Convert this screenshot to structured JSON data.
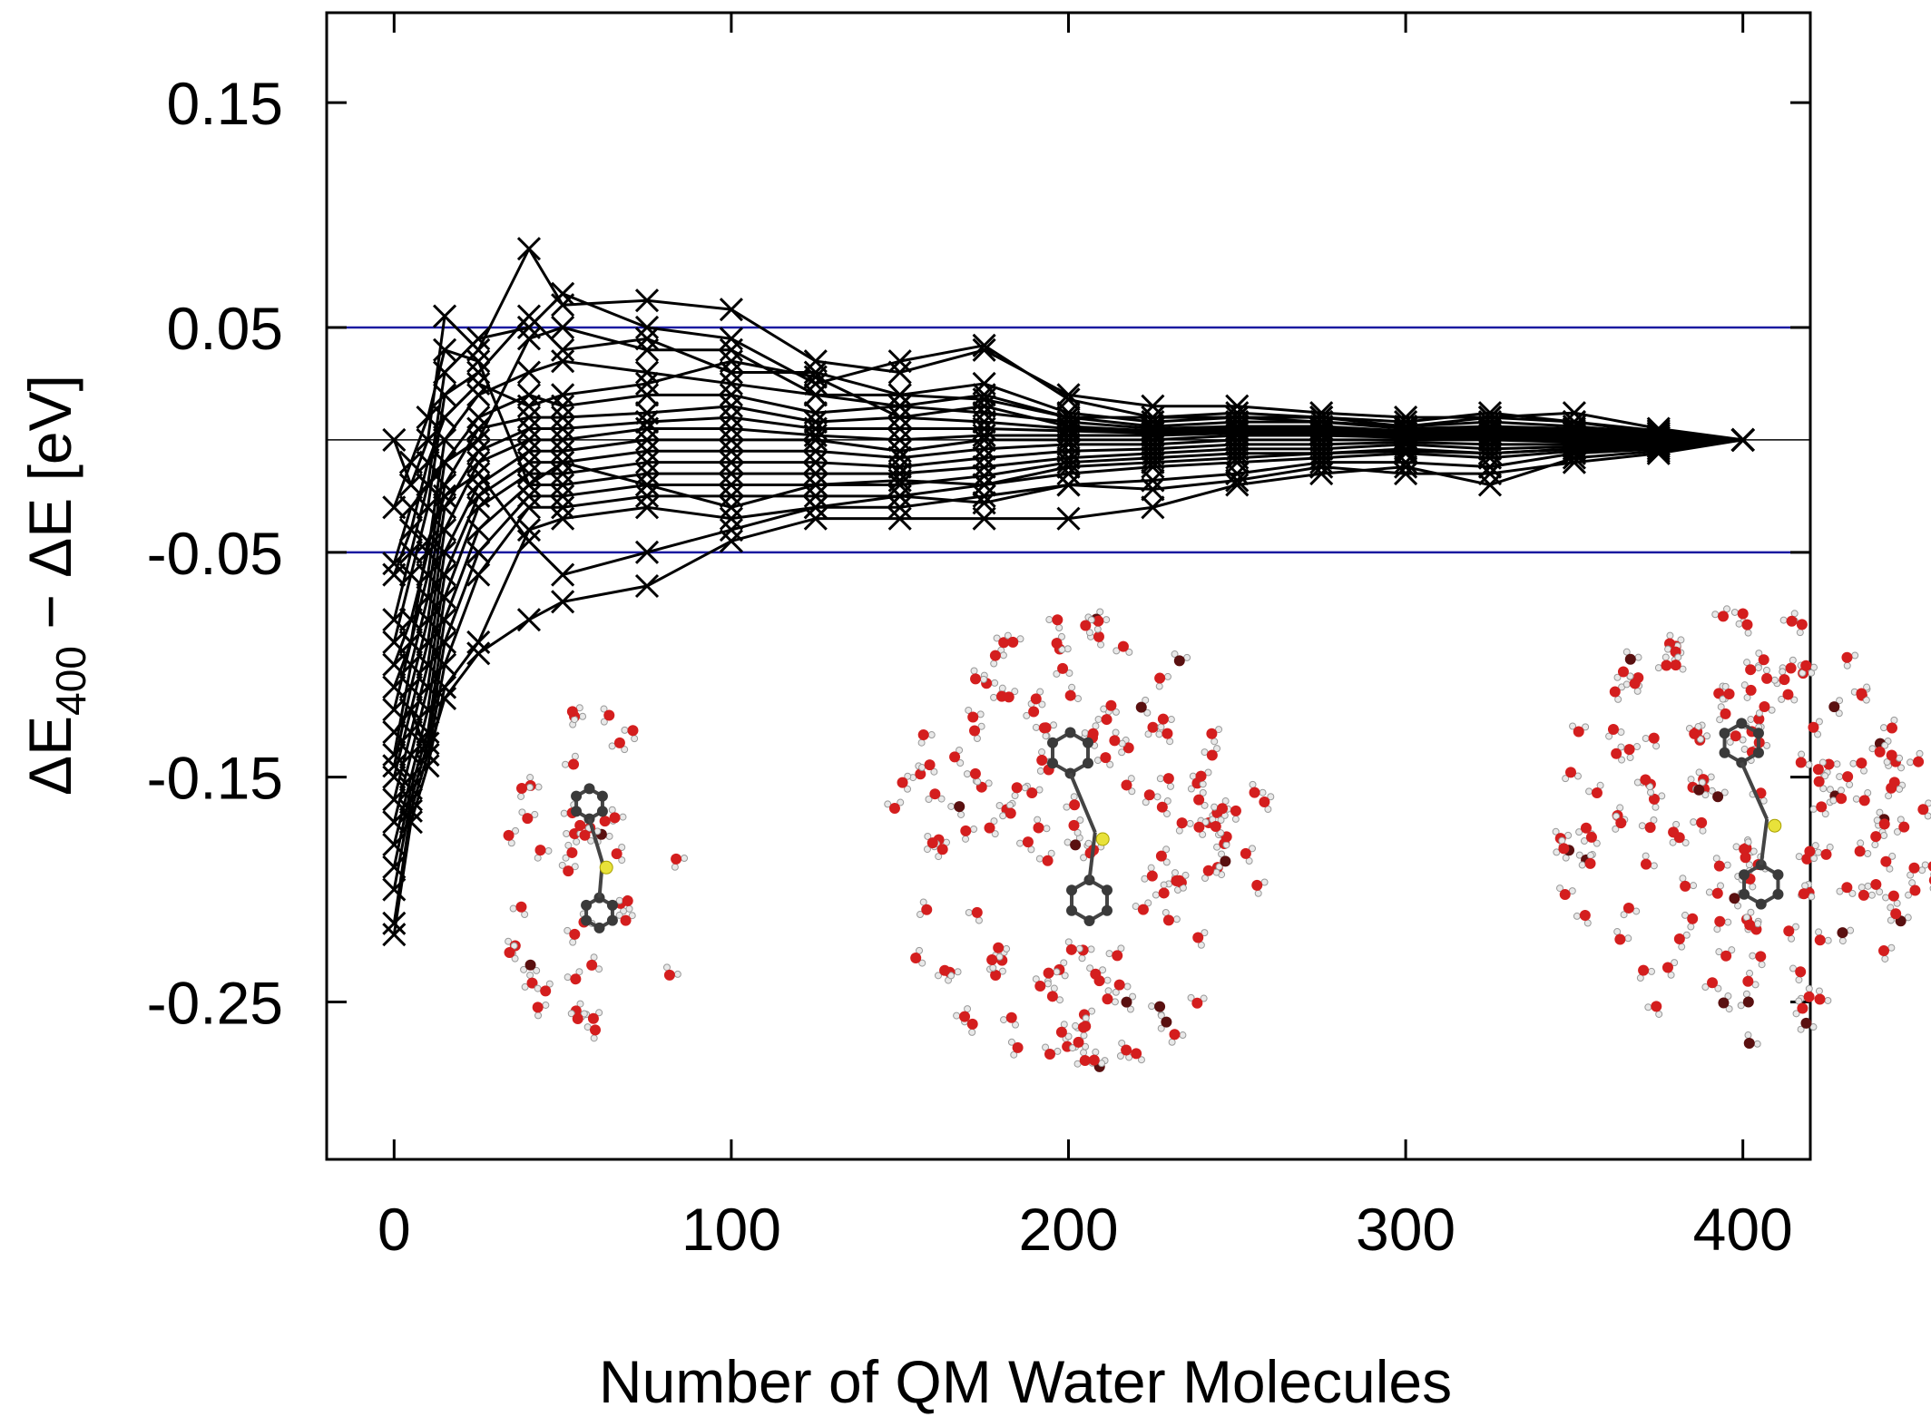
{
  "chart_data": {
    "type": "line",
    "title": "",
    "xlabel": "Number of QM Water Molecules",
    "ylabel": {
      "prefix": "ΔE",
      "subscript": "400",
      "suffix": " − ΔE [eV]"
    },
    "xlim": [
      -20,
      420
    ],
    "ylim": [
      -0.32,
      0.19
    ],
    "xticks": [
      0,
      100,
      200,
      300,
      400
    ],
    "xtick_labels": [
      "0",
      "100",
      "200",
      "300",
      "400"
    ],
    "yticks": [
      0.15,
      0.05,
      -0.05,
      -0.15,
      -0.25
    ],
    "ytick_labels": [
      "0.15",
      "0.05",
      "-0.05",
      "-0.15",
      "-0.25"
    ],
    "reference_lines": [
      {
        "y": 0.05,
        "color": "#1a1aa0"
      },
      {
        "y": -0.05,
        "color": "#1a1aa0"
      },
      {
        "y": 0.0,
        "color": "#000000"
      }
    ],
    "grid": false,
    "legend": "none",
    "marker": "x",
    "line_color": "#000000",
    "x": [
      0,
      5,
      10,
      15,
      25,
      40,
      50,
      75,
      100,
      125,
      150,
      175,
      200,
      225,
      250,
      275,
      300,
      325,
      350,
      375,
      400
    ],
    "series": [
      {
        "values": [
          0.0,
          -0.02,
          0.0,
          0.055,
          0.04,
          0.085,
          0.06,
          0.062,
          0.058,
          0.035,
          0.03,
          0.04,
          0.02,
          0.015,
          0.015,
          0.012,
          0.01,
          0.01,
          0.012,
          0.005,
          0.0
        ]
      },
      {
        "values": [
          -0.055,
          -0.03,
          -0.02,
          0.03,
          0.045,
          0.05,
          0.065,
          0.05,
          0.045,
          0.025,
          0.035,
          0.042,
          0.018,
          0.01,
          0.012,
          0.01,
          0.008,
          0.012,
          0.008,
          0.004,
          0.0
        ]
      },
      {
        "values": [
          -0.09,
          -0.06,
          -0.03,
          0.02,
          0.03,
          0.055,
          0.04,
          0.045,
          0.03,
          0.03,
          0.02,
          0.025,
          0.012,
          0.008,
          0.01,
          0.01,
          0.006,
          0.008,
          0.006,
          0.003,
          0.0
        ]
      },
      {
        "values": [
          -0.1,
          -0.08,
          -0.05,
          0.0,
          0.02,
          0.03,
          0.035,
          0.03,
          0.025,
          0.02,
          0.02,
          0.018,
          0.01,
          0.006,
          0.008,
          0.008,
          0.005,
          0.006,
          0.005,
          0.002,
          0.0
        ]
      },
      {
        "values": [
          -0.12,
          -0.09,
          -0.06,
          -0.01,
          0.01,
          0.02,
          0.015,
          0.02,
          0.02,
          0.012,
          0.015,
          0.012,
          0.008,
          0.005,
          0.006,
          0.006,
          0.004,
          0.005,
          0.004,
          0.002,
          0.0
        ]
      },
      {
        "values": [
          -0.14,
          -0.1,
          -0.07,
          -0.02,
          0.005,
          0.01,
          0.01,
          0.012,
          0.015,
          0.008,
          0.01,
          0.008,
          0.005,
          0.004,
          0.005,
          0.005,
          0.003,
          0.004,
          0.003,
          0.001,
          0.0
        ]
      },
      {
        "values": [
          -0.145,
          -0.11,
          -0.08,
          -0.03,
          -0.005,
          0.005,
          0.005,
          0.008,
          0.01,
          0.005,
          0.005,
          0.005,
          0.004,
          0.003,
          0.004,
          0.004,
          0.002,
          0.003,
          0.002,
          0.001,
          0.0
        ]
      },
      {
        "values": [
          -0.15,
          -0.12,
          -0.09,
          -0.04,
          -0.01,
          0.0,
          0.0,
          0.005,
          0.005,
          0.002,
          0.0,
          0.002,
          0.002,
          0.002,
          0.003,
          0.003,
          0.002,
          0.002,
          0.001,
          0.0,
          0.0
        ]
      },
      {
        "values": [
          -0.16,
          -0.13,
          -0.1,
          -0.05,
          -0.02,
          -0.005,
          -0.005,
          0.0,
          0.0,
          0.0,
          -0.005,
          0.0,
          0.0,
          0.0,
          0.002,
          0.002,
          0.001,
          0.001,
          0.0,
          0.0,
          0.0
        ]
      },
      {
        "values": [
          -0.17,
          -0.14,
          -0.11,
          -0.06,
          -0.025,
          -0.01,
          -0.01,
          -0.005,
          -0.005,
          -0.005,
          -0.008,
          -0.004,
          -0.002,
          -0.002,
          0.0,
          0.0,
          0.0,
          0.0,
          -0.001,
          0.0,
          0.0
        ]
      },
      {
        "values": [
          -0.18,
          -0.15,
          -0.12,
          -0.07,
          -0.03,
          -0.015,
          -0.015,
          -0.01,
          -0.01,
          -0.01,
          -0.012,
          -0.008,
          -0.005,
          -0.004,
          -0.002,
          -0.002,
          -0.001,
          -0.002,
          -0.002,
          -0.001,
          0.0
        ]
      },
      {
        "values": [
          -0.19,
          -0.155,
          -0.13,
          -0.08,
          -0.04,
          -0.02,
          -0.02,
          -0.015,
          -0.015,
          -0.015,
          -0.015,
          -0.012,
          -0.008,
          -0.006,
          -0.004,
          -0.004,
          -0.002,
          -0.004,
          -0.003,
          -0.002,
          0.0
        ]
      },
      {
        "values": [
          -0.2,
          -0.16,
          -0.135,
          -0.09,
          -0.05,
          -0.025,
          -0.025,
          -0.02,
          -0.02,
          -0.02,
          -0.02,
          -0.016,
          -0.01,
          -0.008,
          -0.006,
          -0.006,
          -0.004,
          -0.006,
          -0.004,
          -0.002,
          0.0
        ]
      },
      {
        "values": [
          -0.215,
          -0.165,
          -0.14,
          -0.1,
          -0.06,
          -0.03,
          -0.03,
          -0.025,
          -0.025,
          -0.025,
          -0.025,
          -0.02,
          -0.015,
          -0.012,
          -0.01,
          -0.008,
          -0.006,
          -0.008,
          -0.005,
          -0.003,
          0.0
        ]
      },
      {
        "values": [
          -0.22,
          -0.17,
          -0.145,
          -0.11,
          -0.09,
          -0.04,
          -0.035,
          -0.03,
          -0.035,
          -0.03,
          -0.03,
          -0.025,
          -0.02,
          -0.018,
          -0.015,
          -0.01,
          -0.01,
          -0.012,
          -0.006,
          -0.004,
          0.0
        ]
      },
      {
        "values": [
          -0.13,
          -0.12,
          -0.14,
          -0.115,
          -0.095,
          -0.08,
          -0.072,
          -0.065,
          -0.045,
          -0.035,
          -0.035,
          -0.035,
          -0.035,
          -0.03,
          -0.02,
          -0.015,
          -0.012,
          -0.02,
          -0.008,
          -0.005,
          0.0
        ]
      },
      {
        "values": [
          -0.11,
          -0.09,
          -0.045,
          -0.025,
          -0.015,
          -0.045,
          -0.06,
          -0.05,
          -0.04,
          -0.03,
          -0.025,
          -0.028,
          -0.02,
          -0.022,
          -0.018,
          -0.012,
          -0.015,
          -0.015,
          -0.01,
          -0.006,
          0.0
        ]
      },
      {
        "values": [
          -0.08,
          -0.05,
          -0.02,
          -0.01,
          0.0,
          0.045,
          0.05,
          0.04,
          0.04,
          0.02,
          0.015,
          0.02,
          0.01,
          0.01,
          0.01,
          0.008,
          0.006,
          0.01,
          0.008,
          0.003,
          0.0
        ]
      },
      {
        "values": [
          -0.06,
          -0.04,
          -0.01,
          0.01,
          0.025,
          0.015,
          0.02,
          0.025,
          0.035,
          0.028,
          0.01,
          0.015,
          0.006,
          0.004,
          0.006,
          0.005,
          0.004,
          0.004,
          0.003,
          0.001,
          0.0
        ]
      },
      {
        "values": [
          -0.03,
          -0.01,
          0.01,
          0.04,
          0.035,
          -0.02,
          -0.01,
          -0.02,
          -0.03,
          -0.02,
          -0.018,
          -0.02,
          -0.012,
          -0.01,
          -0.008,
          -0.006,
          -0.005,
          -0.006,
          -0.004,
          -0.002,
          0.0
        ]
      }
    ]
  }
}
